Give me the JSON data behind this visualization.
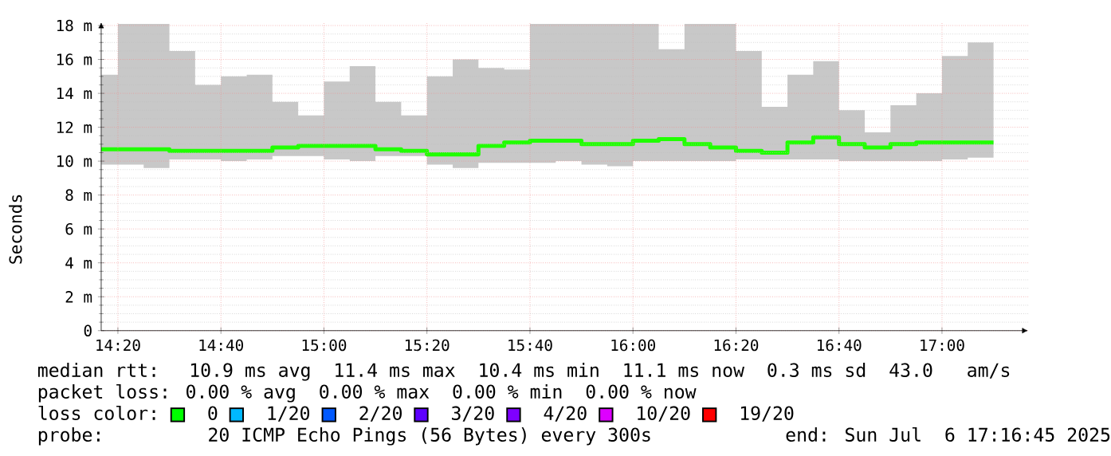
{
  "chart_data": {
    "type": "step",
    "ylabel": "Seconds",
    "x": [
      14.2792,
      14.3333,
      14.4167,
      14.5,
      14.5833,
      14.6667,
      14.75,
      14.8333,
      14.9167,
      15,
      15.0833,
      15.1667,
      15.25,
      15.3333,
      15.4167,
      15.5,
      15.5833,
      15.6667,
      15.75,
      15.8333,
      15.9167,
      16,
      16.0833,
      16.1667,
      16.25,
      16.3333,
      16.4167,
      16.5,
      16.5833,
      16.6667,
      16.75,
      16.8333,
      16.9167,
      17,
      17.0833,
      17.1667
    ],
    "series": [
      {
        "color": "#20ff00",
        "values": [
          10.7,
          10.7,
          10.7,
          10.6,
          10.6,
          10.6,
          10.6,
          10.8,
          10.9,
          10.9,
          10.9,
          10.7,
          10.6,
          10.4,
          10.4,
          10.9,
          11.1,
          11.2,
          11.2,
          11.0,
          11.0,
          11.2,
          11.3,
          11.0,
          10.8,
          10.6,
          10.5,
          11.1,
          11.4,
          11.0,
          10.8,
          11.0,
          11.1,
          11.1,
          11.1,
          11.1
        ],
        "lower": [
          9.8,
          9.8,
          9.6,
          10.1,
          10.1,
          10.0,
          10.1,
          10.3,
          10.3,
          10.1,
          10.0,
          10.3,
          10.3,
          9.8,
          9.6,
          9.9,
          9.9,
          9.9,
          10.0,
          9.8,
          9.7,
          10.0,
          10.0,
          10.0,
          10.0,
          10.1,
          10.1,
          10.1,
          10.1,
          10.0,
          10.0,
          10.0,
          10.0,
          10.1,
          10.2,
          10.2
        ],
        "upper": [
          15.1,
          18.1,
          18.1,
          16.5,
          14.5,
          15.0,
          15.1,
          13.5,
          12.7,
          14.7,
          15.6,
          13.5,
          12.7,
          15.0,
          16.0,
          15.5,
          15.4,
          18.1,
          18.1,
          18.1,
          18.1,
          18.1,
          16.6,
          18.1,
          18.1,
          16.5,
          13.2,
          15.1,
          15.9,
          13.0,
          11.7,
          13.3,
          14.0,
          16.2,
          17.0,
          17.0
        ]
      }
    ],
    "xlim": [
      14.2792,
      17.2792
    ],
    "ylim": [
      0,
      18.2
    ],
    "xticks": [
      {
        "value": 14.3333,
        "label": "14:20"
      },
      {
        "value": 14.6667,
        "label": "14:40"
      },
      {
        "value": 15,
        "label": "15:00"
      },
      {
        "value": 15.3333,
        "label": "15:20"
      },
      {
        "value": 15.6667,
        "label": "15:40"
      },
      {
        "value": 16,
        "label": "16:00"
      },
      {
        "value": 16.3333,
        "label": "16:20"
      },
      {
        "value": 16.6667,
        "label": "16:40"
      },
      {
        "value": 17,
        "label": "17:00"
      }
    ],
    "yticks": [
      0,
      {
        "value": 2,
        "label": "2 m"
      },
      {
        "value": 4,
        "label": "4 m"
      },
      {
        "value": 6,
        "label": "6 m"
      },
      {
        "value": 8,
        "label": "8 m"
      },
      {
        "value": 10,
        "label": "10 m"
      },
      {
        "value": 12,
        "label": "12 m"
      },
      {
        "value": 14,
        "label": "14 m"
      },
      {
        "value": 16,
        "label": "16 m"
      },
      {
        "value": 18,
        "label": "18 m"
      }
    ],
    "grid": true,
    "annotations": [
      "median rtt:  10.9 ms avg  11.4 ms max  10.4 ms min  11.1 ms now  0.3 ms sd  43.0   am/s",
      "packet loss: 0.00 % avg  0.00 % max  0.00 % min  0.00 % now",
      "loss color:",
      "0",
      "1/20",
      "2/20",
      "3/20",
      "4/20",
      "10/20",
      "19/20",
      "probe:       20 ICMP Echo Pings (56 Bytes) every 300s            end: Sun Jul  6 17:16:45 2025"
    ]
  }
}
